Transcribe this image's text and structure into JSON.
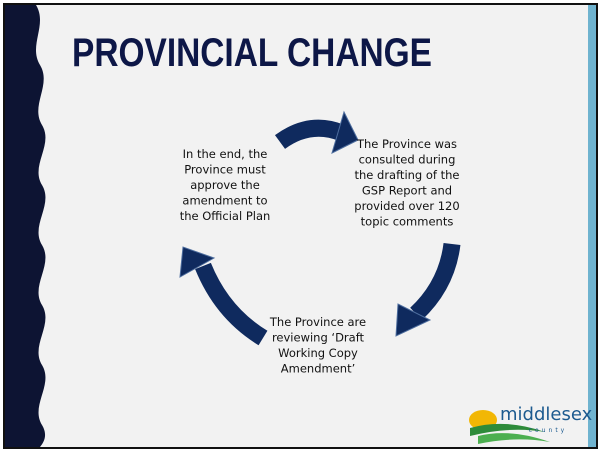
{
  "title": "PROVINCIAL CHANGE",
  "nodes": [
    {
      "lines": [
        "In the end, the",
        "Province must",
        "approve the",
        "amendment to",
        "the Official Plan"
      ]
    },
    {
      "lines": [
        "The Province was",
        "consulted during",
        "the drafting of the",
        "GSP Report and",
        "provided over 120",
        "topic comments"
      ]
    },
    {
      "lines": [
        "The Province are",
        "reviewing ‘Draft",
        "Working Copy",
        "Amendment’"
      ]
    }
  ],
  "logo": {
    "name": "middlesex",
    "sub": "county"
  }
}
